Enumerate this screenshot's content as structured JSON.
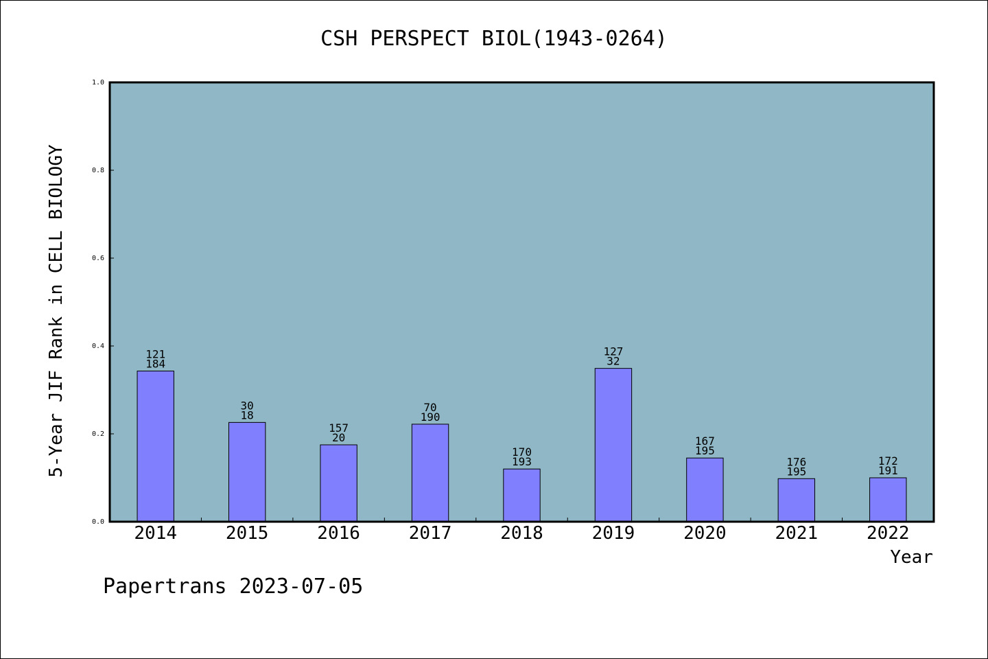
{
  "chart_data": {
    "type": "bar",
    "title": "CSH PERSPECT BIOL(1943-0264)",
    "xlabel": "Year",
    "ylabel": "5-Year JIF Rank in CELL BIOLOGY",
    "ylim": [
      0,
      1.0
    ],
    "yticks": [
      "0.0",
      "0.2",
      "0.4",
      "0.6",
      "0.8",
      "1.0"
    ],
    "grid": false,
    "categories": [
      "2014",
      "2015",
      "2016",
      "2017",
      "2018",
      "2019",
      "2020",
      "2021",
      "2022"
    ],
    "values": [
      0.343,
      0.226,
      0.175,
      0.222,
      0.12,
      0.349,
      0.145,
      0.098,
      0.1
    ],
    "labels_top": [
      "121",
      "30",
      "157",
      "70",
      "170",
      "127",
      "167",
      "176",
      "172"
    ],
    "labels_bottom": [
      "184",
      "18",
      "20",
      "190",
      "193",
      "32",
      "195",
      "195",
      "191"
    ],
    "colors": {
      "plot_background": "#8fb7c5",
      "bar_fill": "#8080ff",
      "bar_stroke": "#000000"
    }
  },
  "footer": {
    "text": "Papertrans 2023-07-05"
  }
}
